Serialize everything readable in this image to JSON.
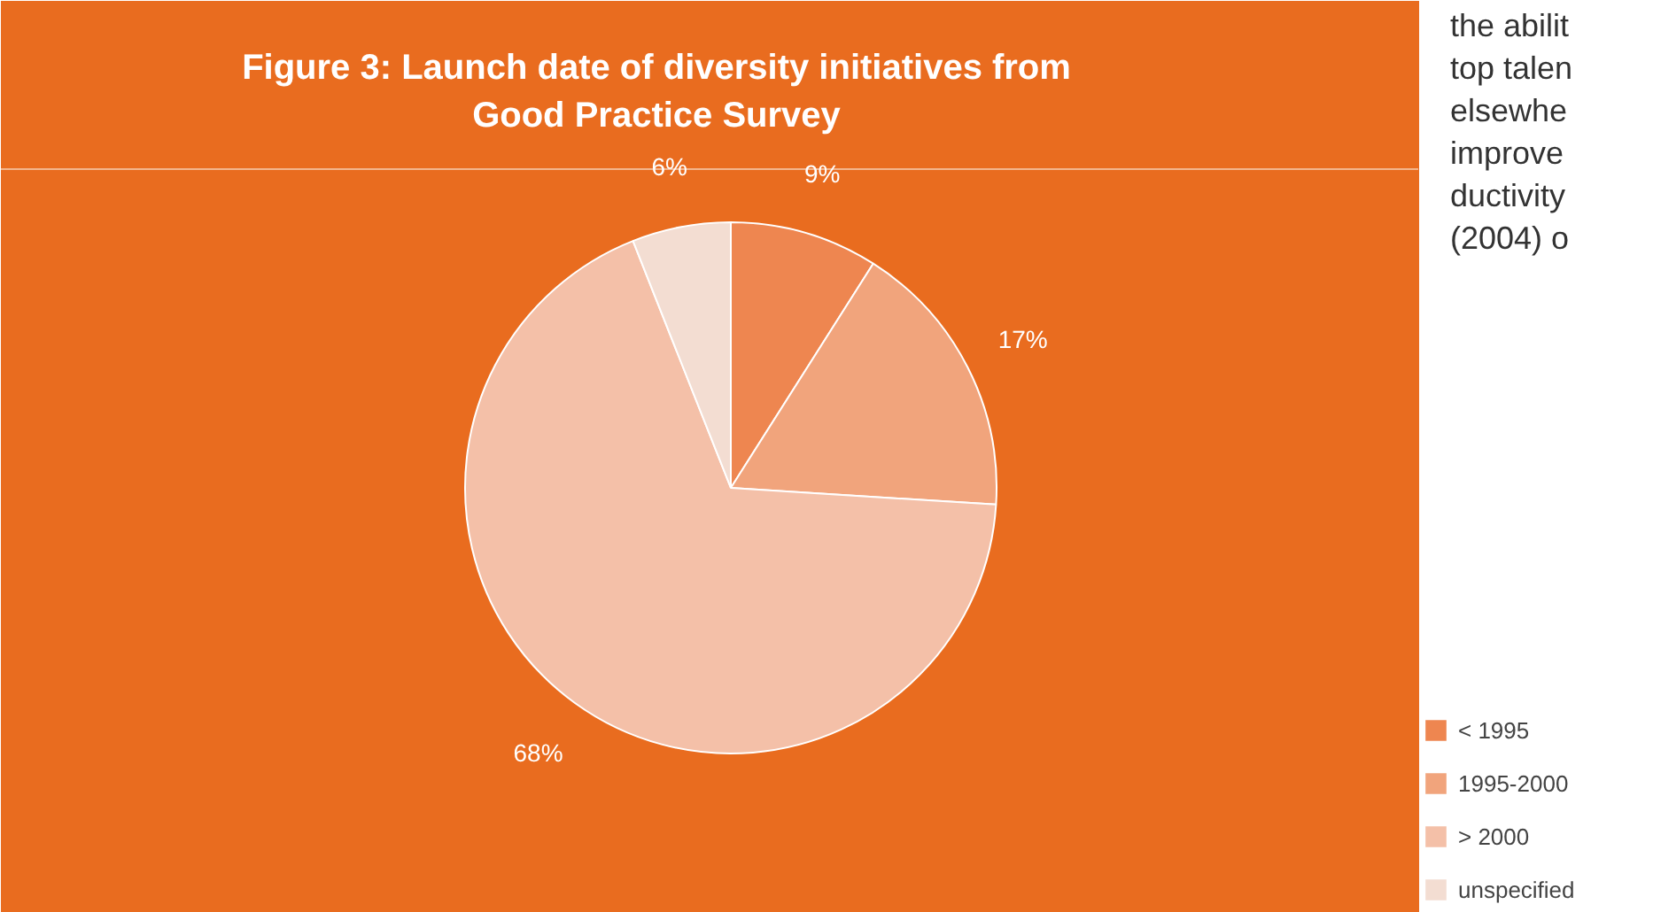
{
  "chart_data": {
    "type": "pie",
    "title": "Figure 3: Launch date of diversity initiatives from Good Practice Survey",
    "categories": [
      "< 1995",
      "1995-2000",
      "> 2000",
      "unspecified"
    ],
    "values": [
      9,
      17,
      68,
      6
    ],
    "colors": [
      "#ee8650",
      "#f1a47c",
      "#f4c0a8",
      "#f3ddd2"
    ],
    "legend": "right",
    "value_labels": [
      "9%",
      "17%",
      "68%",
      "6%"
    ],
    "annotations": [
      "the abilit",
      "top talen",
      "elsewhe",
      "improve",
      "ductivity",
      "(2004) o"
    ]
  }
}
